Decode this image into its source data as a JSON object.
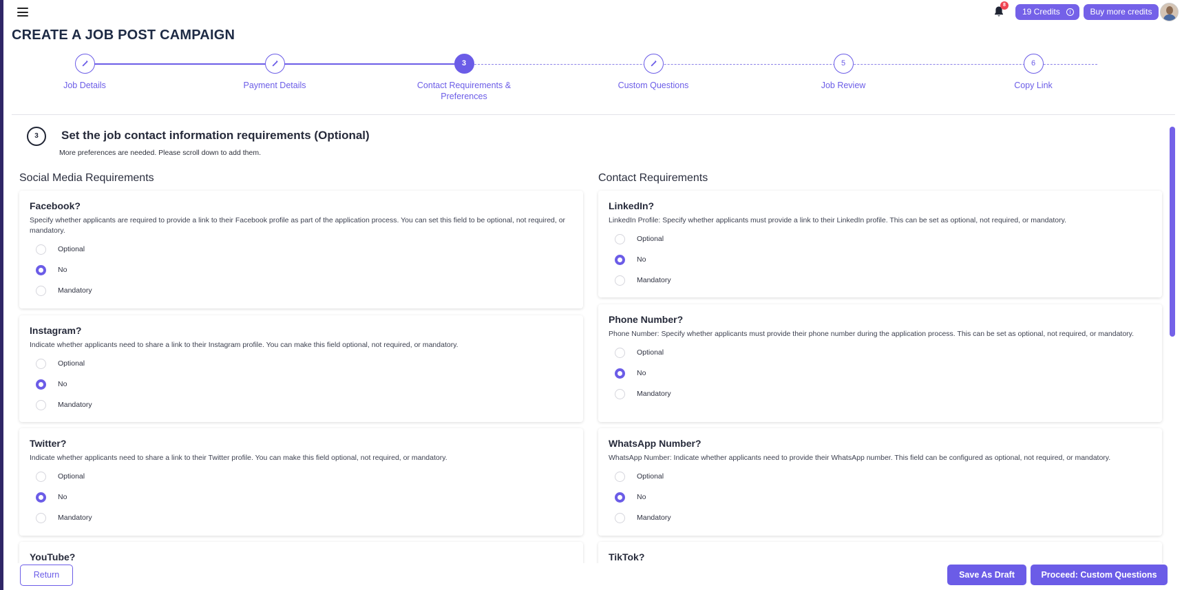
{
  "header": {
    "notification_count": "8",
    "credits_label": "19 Credits",
    "buy_credits_label": "Buy more credits"
  },
  "page_title": "CREATE A JOB POST CAMPAIGN",
  "stepper": {
    "steps": [
      {
        "label": "Job Details",
        "marker": "",
        "status": "done"
      },
      {
        "label": "Payment Details",
        "marker": "",
        "status": "done"
      },
      {
        "label": "Contact Requirements & Preferences",
        "marker": "3",
        "status": "active"
      },
      {
        "label": "Custom Questions",
        "marker": "",
        "status": "done"
      },
      {
        "label": "Job Review",
        "marker": "5",
        "status": "todo"
      },
      {
        "label": "Copy Link",
        "marker": "6",
        "status": "todo"
      }
    ]
  },
  "section": {
    "number": "3",
    "title": "Set the job contact information requirements (Optional)",
    "subtitle": "More preferences are needed. Please scroll down to add them."
  },
  "social": {
    "title": "Social Media Requirements",
    "cards": [
      {
        "title": "Facebook?",
        "description": "Specify whether applicants are required to provide a link to their Facebook profile as part of the application process. You can set this field to be optional, not required, or mandatory.",
        "options": [
          "Optional",
          "No",
          "Mandatory"
        ],
        "selected": "No"
      },
      {
        "title": "Instagram?",
        "description": "Indicate whether applicants need to share a link to their Instagram profile. You can make this field optional, not required, or mandatory.",
        "options": [
          "Optional",
          "No",
          "Mandatory"
        ],
        "selected": "No"
      },
      {
        "title": "Twitter?",
        "description": "Indicate whether applicants need to share a link to their Twitter profile. You can make this field optional, not required, or mandatory.",
        "options": [
          "Optional",
          "No",
          "Mandatory"
        ],
        "selected": "No"
      },
      {
        "title": "YouTube?"
      }
    ]
  },
  "contact": {
    "title": "Contact Requirements",
    "cards": [
      {
        "title": "LinkedIn?",
        "description": "LinkedIn Profile: Specify whether applicants must provide a link to their LinkedIn profile. This can be set as optional, not required, or mandatory.",
        "options": [
          "Optional",
          "No",
          "Mandatory"
        ],
        "selected": "No"
      },
      {
        "title": "Phone Number?",
        "description": "Phone Number: Specify whether applicants must provide their phone number during the application process. This can be set as optional, not required, or mandatory.",
        "options": [
          "Optional",
          "No",
          "Mandatory"
        ],
        "selected": "No"
      },
      {
        "title": "WhatsApp Number?",
        "description": "WhatsApp Number: Indicate whether applicants need to provide their WhatsApp number. This field can be configured as optional, not required, or mandatory.",
        "options": [
          "Optional",
          "No",
          "Mandatory"
        ],
        "selected": "No"
      },
      {
        "title": "TikTok?"
      }
    ]
  },
  "footer": {
    "return_label": "Return",
    "draft_label": "Save As Draft",
    "proceed_label": "Proceed: Custom Questions"
  }
}
